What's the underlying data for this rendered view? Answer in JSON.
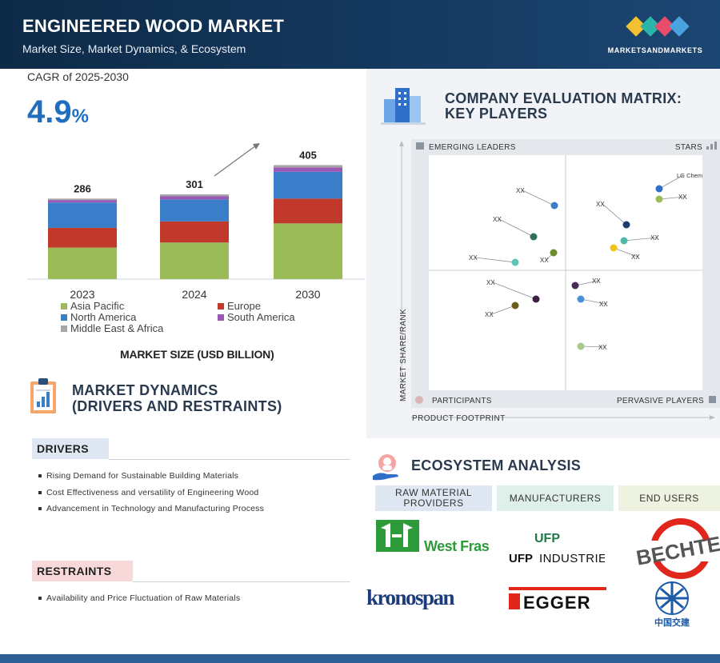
{
  "header": {
    "title": "ENGINEERED WOOD MARKET",
    "subtitle": "Market Size, Market Dynamics, & Ecosystem",
    "brand": "MARKETSANDMARKETS",
    "brand_colors": [
      "#f3c02f",
      "#2bb5a9",
      "#e84c6b",
      "#4aa3df"
    ]
  },
  "cagr": {
    "label": "CAGR of 2025-2030",
    "value": "4.9",
    "unit": "%"
  },
  "chart_data": {
    "type": "bar",
    "stacked": true,
    "title": "MARKET SIZE (USD BILLION)",
    "categories": [
      "2023",
      "2024",
      "2030"
    ],
    "totals": [
      "286",
      "301",
      "405"
    ],
    "series": [
      {
        "name": "Asia Pacific",
        "color": "#9bbb59",
        "values": [
          112,
          130,
          198
        ]
      },
      {
        "name": "Europe",
        "color": "#c0392b",
        "values": [
          70,
          75,
          88
        ]
      },
      {
        "name": "North America",
        "color": "#3a7dc9",
        "values": [
          90,
          78,
          95
        ]
      },
      {
        "name": "South America",
        "color": "#9b59b6",
        "values": [
          9,
          12,
          16
        ]
      },
      {
        "name": "Middle East & Africa",
        "color": "#a6a6a6",
        "values": [
          5,
          6,
          8
        ]
      }
    ],
    "legend_position": "bottom"
  },
  "dynamics": {
    "title_line1": "MARKET DYNAMICS",
    "title_line2": "(DRIVERS AND RESTRAINTS)",
    "drivers_label": "DRIVERS",
    "drivers": [
      "Rising Demand for Sustainable Building Materials",
      "Cost Effectiveness and versatility of Engineering Wood",
      "Advancement in Technology and Manufacturing Process"
    ],
    "restraints_label": "RESTRAINTS",
    "restraints": [
      "Availability and Price Fluctuation of Raw Materials"
    ]
  },
  "matrix": {
    "title_line1": "COMPANY EVALUATION MATRIX:",
    "title_line2": "KEY PLAYERS",
    "quadrants": {
      "top_left": "EMERGING LEADERS",
      "top_right": "STARS",
      "bottom_left": "PARTICIPANTS",
      "bottom_right": "PERVASIVE PLAYERS"
    },
    "y_axis": "MARKET SHARE/RANK",
    "x_axis": "PRODUCT FOOTPRINT",
    "highlight_label": "LG Chem",
    "placeholder_label": "XX"
  },
  "ecosystem": {
    "title": "ECOSYSTEM ANALYSIS",
    "headers": [
      "RAW MATERIAL PROVIDERS",
      "MANUFACTURERS",
      "END USERS"
    ],
    "logos": {
      "west_fraser": "West Fraser",
      "ufp_1": "UFP",
      "ufp_2": "INDUSTRIES",
      "bechtel": "BECHTEL",
      "kronospan": "kronospan",
      "egger": "EGGER",
      "cccc": "中国交建"
    }
  }
}
